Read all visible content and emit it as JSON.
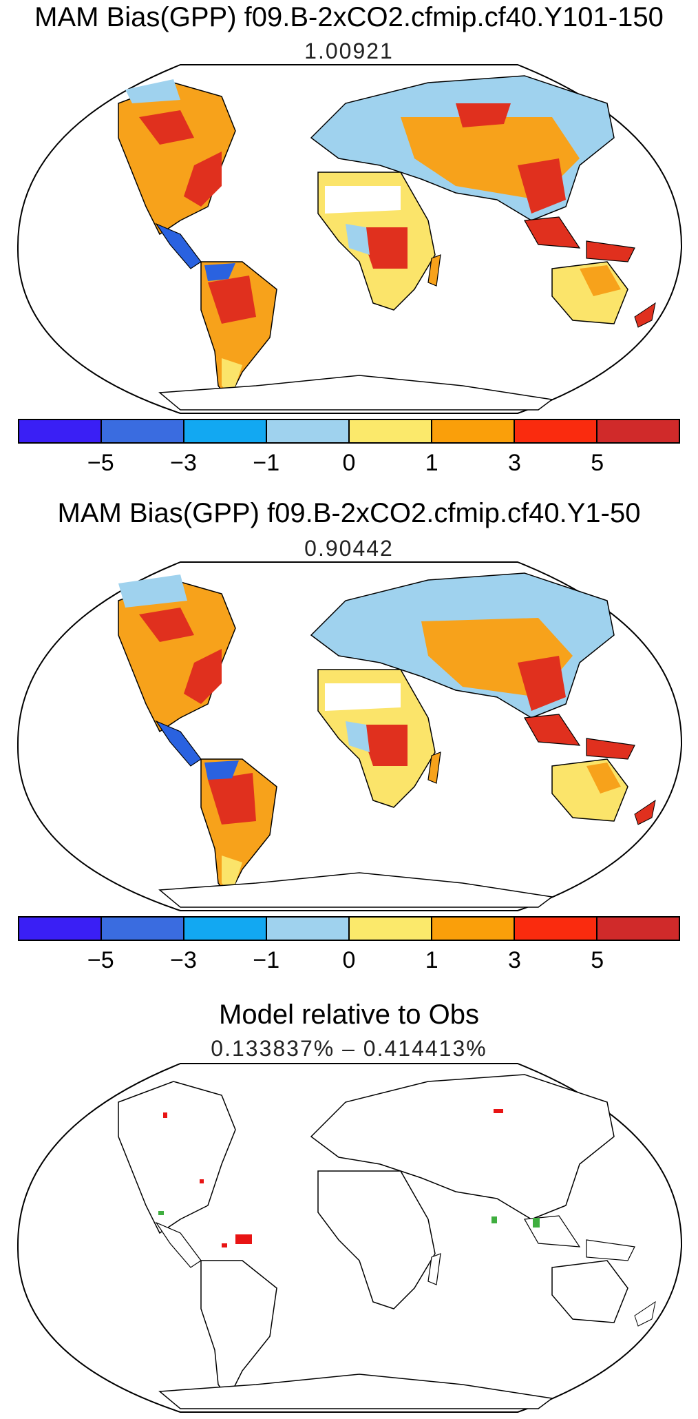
{
  "panels": [
    {
      "title": "MAM Bias(GPP) f09.B-2xCO2.cfmip.cf40.Y101-150",
      "subtitle": "1.00921"
    },
    {
      "title": "MAM Bias(GPP) f09.B-2xCO2.cfmip.cf40.Y1-50",
      "subtitle": "0.90442"
    },
    {
      "title": "Model relative to Obs",
      "subtitle": "0.133837% – 0.414413%"
    }
  ],
  "colorbar": {
    "colors": [
      "#3a1ff5",
      "#3a6ce0",
      "#12a8f2",
      "#9fd2ee",
      "#fbe96b",
      "#fa9f0a",
      "#fa2b0e",
      "#d02a2a"
    ],
    "tick_labels": [
      "−5",
      "−3",
      "−1",
      "0",
      "1",
      "3",
      "5"
    ]
  },
  "colors": {
    "red_region": "#e0301e",
    "orange_region": "#f7a21b",
    "yellow_region": "#fbe46a",
    "lightblue_region": "#9fd2ee",
    "blue_region": "#2a62e0",
    "green_marker": "#3fae3f",
    "red_marker": "#e81414"
  }
}
